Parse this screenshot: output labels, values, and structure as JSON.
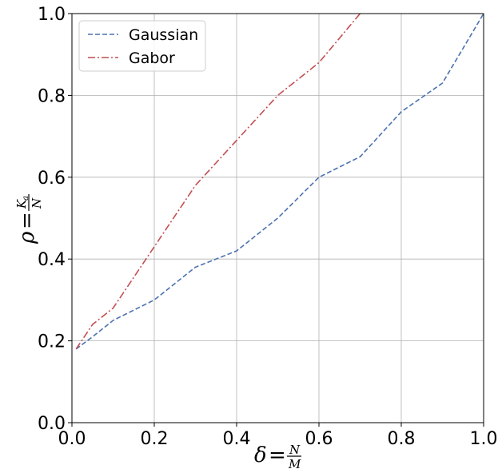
{
  "chart_data": {
    "type": "line",
    "title": "",
    "xlabel": "δ = N/M",
    "xlabel_parts": {
      "lhs": "δ",
      "eq": "=",
      "num": "N",
      "den": "M"
    },
    "ylabel": "ρ = K_a/N",
    "ylabel_parts": {
      "lhs": "ρ",
      "eq": "=",
      "num": "K",
      "num_sub": "a",
      "den": "N"
    },
    "xlim": [
      0.0,
      1.0
    ],
    "ylim": [
      0.0,
      1.0
    ],
    "xticks": [
      "0.0",
      "0.2",
      "0.4",
      "0.6",
      "0.8",
      "1.0"
    ],
    "yticks": [
      "0.0",
      "0.2",
      "0.4",
      "0.6",
      "0.8",
      "1.0"
    ],
    "grid": true,
    "legend_position": "top-left",
    "series": [
      {
        "name": "Gaussian",
        "color": "#4c72b0",
        "linestyle": "dashed",
        "x": [
          0.01,
          0.05,
          0.1,
          0.2,
          0.3,
          0.4,
          0.5,
          0.6,
          0.7,
          0.8,
          0.9,
          1.0
        ],
        "y": [
          0.18,
          0.21,
          0.25,
          0.3,
          0.38,
          0.42,
          0.5,
          0.6,
          0.65,
          0.76,
          0.83,
          1.0
        ]
      },
      {
        "name": "Gabor",
        "color": "#c44e52",
        "linestyle": "dashdot",
        "x": [
          0.01,
          0.05,
          0.1,
          0.2,
          0.3,
          0.4,
          0.5,
          0.6,
          0.7
        ],
        "y": [
          0.18,
          0.24,
          0.28,
          0.43,
          0.58,
          0.69,
          0.8,
          0.88,
          1.0
        ]
      }
    ]
  }
}
